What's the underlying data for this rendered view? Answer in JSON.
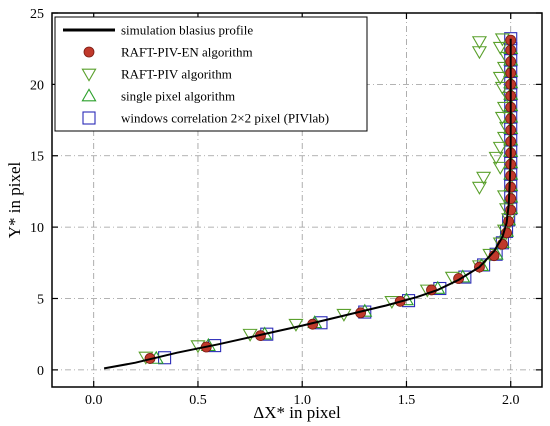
{
  "chart_data": {
    "type": "scatter",
    "xlabel": "ΔX* in pixel",
    "ylabel": "Y* in pixel",
    "xlim": [
      -0.2,
      2.15
    ],
    "ylim": [
      -1.2,
      25
    ],
    "xticks": [
      0.0,
      0.5,
      1.0,
      1.5,
      2.0
    ],
    "xtick_labels": [
      "0.0",
      "0.5",
      "1.0",
      "1.5",
      "2.0"
    ],
    "yticks": [
      0,
      5,
      10,
      15,
      20,
      25
    ],
    "ytick_labels": [
      "0",
      "5",
      "10",
      "15",
      "20",
      "25"
    ],
    "grid": true,
    "legend_position": "top-left",
    "colors": {
      "line": "#000000",
      "raft_piv_en": "#c0392b",
      "raft_piv": "#5aa02c",
      "single_pixel": "#2ca02c",
      "windows_corr": "#2b2bb8",
      "grid": "#9a9a9a"
    },
    "series": [
      {
        "name": "simulation blasius profile",
        "kind": "line",
        "points": [
          [
            0.05,
            0.1
          ],
          [
            0.2,
            0.5
          ],
          [
            0.4,
            1.2
          ],
          [
            0.6,
            1.8
          ],
          [
            0.8,
            2.45
          ],
          [
            1.0,
            3.1
          ],
          [
            1.2,
            3.8
          ],
          [
            1.4,
            4.5
          ],
          [
            1.55,
            5.1
          ],
          [
            1.65,
            5.6
          ],
          [
            1.75,
            6.3
          ],
          [
            1.85,
            7.2
          ],
          [
            1.92,
            8.3
          ],
          [
            1.96,
            9.3
          ],
          [
            1.98,
            10.3
          ],
          [
            1.99,
            11.5
          ],
          [
            1.995,
            13
          ],
          [
            2.0,
            15
          ],
          [
            2.0,
            18
          ],
          [
            2.0,
            21
          ],
          [
            2.0,
            23.2
          ]
        ]
      },
      {
        "name": "RAFT-PIV-EN algorithm",
        "kind": "circle",
        "points": [
          [
            0.27,
            0.8
          ],
          [
            0.54,
            1.6
          ],
          [
            0.8,
            2.4
          ],
          [
            1.05,
            3.2
          ],
          [
            1.28,
            4.0
          ],
          [
            1.47,
            4.8
          ],
          [
            1.62,
            5.6
          ],
          [
            1.75,
            6.4
          ],
          [
            1.85,
            7.2
          ],
          [
            1.92,
            8.0
          ],
          [
            1.96,
            8.8
          ],
          [
            1.98,
            9.6
          ],
          [
            1.99,
            10.4
          ],
          [
            2.0,
            11.2
          ],
          [
            2.0,
            12.0
          ],
          [
            2.0,
            12.8
          ],
          [
            2.0,
            13.6
          ],
          [
            2.0,
            14.4
          ],
          [
            2.0,
            15.2
          ],
          [
            2.0,
            16.0
          ],
          [
            2.0,
            16.8
          ],
          [
            2.0,
            17.6
          ],
          [
            2.0,
            18.4
          ],
          [
            2.0,
            19.2
          ],
          [
            2.0,
            20.0
          ],
          [
            2.0,
            20.8
          ],
          [
            2.0,
            21.6
          ],
          [
            2.0,
            22.4
          ],
          [
            2.0,
            23.1
          ]
        ]
      },
      {
        "name": "RAFT-PIV algorithm",
        "kind": "triangle-down",
        "points": [
          [
            0.25,
            0.9
          ],
          [
            0.5,
            1.7
          ],
          [
            0.75,
            2.5
          ],
          [
            0.97,
            3.2
          ],
          [
            1.2,
            3.9
          ],
          [
            1.43,
            4.8
          ],
          [
            1.6,
            5.6
          ],
          [
            1.72,
            6.5
          ],
          [
            1.85,
            7.3
          ],
          [
            1.9,
            8.1
          ],
          [
            1.95,
            8.9
          ],
          [
            1.97,
            9.8
          ],
          [
            1.99,
            10.6
          ],
          [
            1.98,
            11.3
          ],
          [
            1.97,
            12.2
          ],
          [
            1.85,
            12.8
          ],
          [
            1.87,
            13.5
          ],
          [
            1.95,
            14.2
          ],
          [
            1.93,
            14.9
          ],
          [
            1.95,
            15.6
          ],
          [
            1.97,
            16.3
          ],
          [
            1.98,
            17.0
          ],
          [
            1.96,
            17.7
          ],
          [
            1.97,
            18.4
          ],
          [
            1.99,
            19.1
          ],
          [
            1.96,
            19.8
          ],
          [
            1.95,
            20.5
          ],
          [
            1.97,
            21.2
          ],
          [
            1.98,
            21.9
          ],
          [
            1.95,
            22.6
          ],
          [
            1.85,
            22.3
          ],
          [
            1.85,
            23.0
          ],
          [
            1.96,
            23.2
          ]
        ]
      },
      {
        "name": "single pixel algorithm",
        "kind": "triangle-up",
        "points": [
          [
            0.3,
            0.8
          ],
          [
            0.55,
            1.7
          ],
          [
            0.82,
            2.5
          ],
          [
            1.06,
            3.3
          ],
          [
            1.3,
            4.1
          ],
          [
            1.5,
            4.9
          ],
          [
            1.65,
            5.7
          ],
          [
            1.77,
            6.5
          ],
          [
            1.86,
            7.3
          ],
          [
            1.93,
            8.1
          ],
          [
            1.96,
            8.9
          ],
          [
            1.98,
            9.7
          ],
          [
            1.99,
            10.5
          ],
          [
            2.0,
            11.3
          ],
          [
            2.0,
            12.1
          ],
          [
            2.0,
            12.9
          ],
          [
            2.0,
            13.7
          ],
          [
            2.0,
            14.5
          ],
          [
            2.0,
            15.3
          ],
          [
            2.0,
            16.1
          ],
          [
            2.0,
            16.9
          ],
          [
            2.0,
            17.7
          ],
          [
            2.0,
            18.5
          ],
          [
            2.0,
            19.3
          ],
          [
            2.0,
            20.1
          ],
          [
            2.0,
            20.9
          ],
          [
            2.0,
            21.7
          ],
          [
            2.0,
            22.5
          ]
        ]
      },
      {
        "name": "windows correlation 2×2 pixel (PIVlab)",
        "kind": "square",
        "points": [
          [
            0.34,
            0.85
          ],
          [
            0.58,
            1.7
          ],
          [
            0.83,
            2.5
          ],
          [
            1.09,
            3.3
          ],
          [
            1.3,
            4.05
          ],
          [
            1.51,
            4.85
          ],
          [
            1.66,
            5.7
          ],
          [
            1.78,
            6.5
          ],
          [
            1.87,
            7.35
          ],
          [
            1.93,
            8.1
          ],
          [
            1.96,
            8.9
          ],
          [
            1.98,
            9.7
          ],
          [
            1.99,
            10.5
          ],
          [
            2.0,
            11.3
          ],
          [
            2.0,
            12.1
          ],
          [
            2.0,
            12.9
          ],
          [
            2.0,
            13.7
          ],
          [
            2.0,
            14.5
          ],
          [
            2.0,
            15.3
          ],
          [
            2.0,
            16.1
          ],
          [
            2.0,
            16.9
          ],
          [
            2.0,
            17.7
          ],
          [
            2.0,
            18.5
          ],
          [
            2.0,
            19.3
          ],
          [
            2.0,
            20.1
          ],
          [
            2.0,
            20.9
          ],
          [
            2.0,
            21.7
          ],
          [
            2.0,
            22.5
          ],
          [
            2.0,
            23.2
          ]
        ]
      }
    ]
  }
}
